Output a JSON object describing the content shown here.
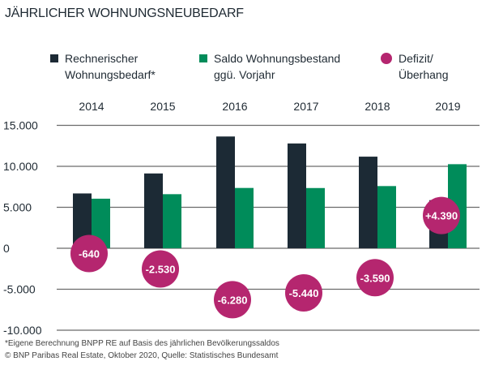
{
  "chart_data": {
    "type": "bar",
    "title": "JÄHRLICHER WOHNUNGSNEUBEDARF",
    "categories": [
      "2014",
      "2015",
      "2016",
      "2017",
      "2018",
      "2019"
    ],
    "series": [
      {
        "name": "Rechnerischer Wohnungsbedarf*",
        "color": "#1c2a35",
        "values": [
          6690,
          9130,
          13640,
          12790,
          11180,
          5870
        ]
      },
      {
        "name": "Saldo Wohnungsbestand ggü. Vorjahr",
        "color": "#008c5a",
        "values": [
          6050,
          6600,
          7360,
          7350,
          7590,
          10260
        ]
      },
      {
        "name": "Defizit/ Überhang",
        "color": "#b5266f",
        "type": "bubble",
        "values": [
          -640,
          -2530,
          -6280,
          -5440,
          -3590,
          4390
        ],
        "labels": [
          "-640",
          "-2.530",
          "-6.280",
          "-5.440",
          "-3.590",
          "+4.390"
        ]
      }
    ],
    "legend_lines": [
      [
        "Rechnerischer",
        "Wohnungsbedarf*"
      ],
      [
        "Saldo Wohnungsbestand",
        "ggü. Vorjahr"
      ],
      [
        "Defizit/",
        "Überhang"
      ]
    ],
    "yticks": [
      15000,
      10000,
      5000,
      0,
      -5000,
      -10000
    ],
    "ytick_labels": [
      "15.000",
      "10.000",
      "5.000",
      "0",
      "-5.000",
      "-10.000"
    ],
    "ylim": [
      -10000,
      15000
    ],
    "grid": true,
    "legend": "top",
    "footnotes": [
      "*Eigene Berechnung BNPP RE auf Basis des jährlichen Bevölkerungssaldos",
      "© BNP Paribas Real Estate, Oktober 2020, Quelle: Statistisches Bundesamt"
    ]
  }
}
